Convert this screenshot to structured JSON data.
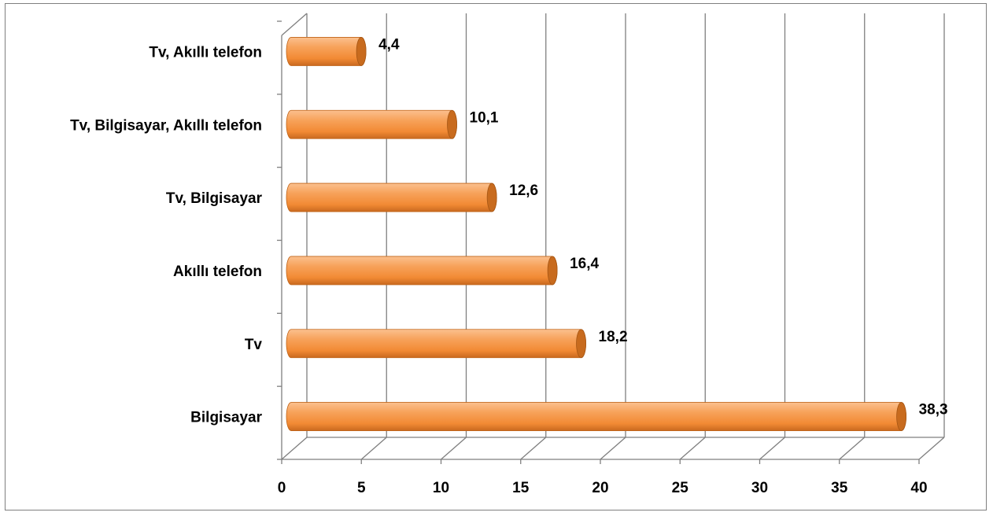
{
  "chart_data": {
    "type": "bar",
    "orientation": "horizontal",
    "categories": [
      "Bilgisayar",
      "Tv",
      "Akıllı telefon",
      "Tv, Bilgisayar",
      "Tv, Bilgisayar, Akıllı telefon",
      "Tv, Akıllı telefon"
    ],
    "values": [
      38.3,
      18.2,
      16.4,
      12.6,
      10.1,
      4.4
    ],
    "data_labels": [
      "38,3",
      "18,2",
      "16,4",
      "12,6",
      "10,1",
      "4,4"
    ],
    "title": "",
    "xlabel": "",
    "ylabel": "",
    "xlim": [
      0,
      40
    ],
    "x_ticks": [
      0,
      5,
      10,
      15,
      20,
      25,
      30,
      35,
      40
    ],
    "grid": true,
    "style": "3d-cylinder",
    "bar_color": "#f79646",
    "bar_end_color": "#c86b1e",
    "grid_color": "#7f7f7f"
  }
}
